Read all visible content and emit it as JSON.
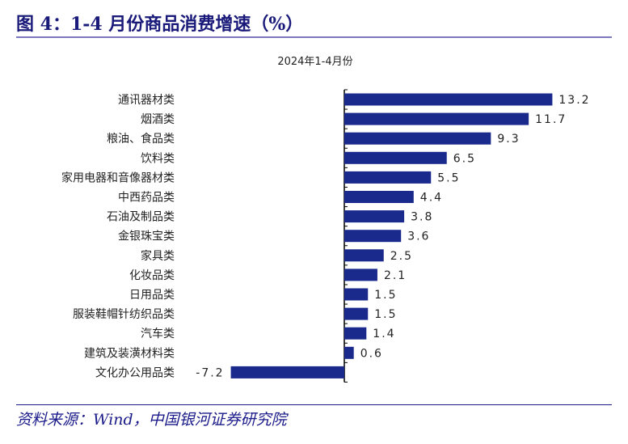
{
  "figure_title": "图 4：1-4 月份商品消费增速（%）",
  "source": "资料来源：Wind，中国银河证券研究院",
  "chart_data": {
    "type": "bar",
    "orientation": "horizontal",
    "title": "2024年1-4月份",
    "categories": [
      "通讯器材类",
      "烟酒类",
      "粮油、食品类",
      "饮料类",
      "家用电器和音像器材类",
      "中西药品类",
      "石油及制品类",
      "金银珠宝类",
      "家具类",
      "化妆品类",
      "日用品类",
      "服装鞋帽针纺织品类",
      "汽车类",
      "建筑及装潢材料类",
      "文化办公用品类"
    ],
    "values": [
      13.2,
      11.7,
      9.3,
      6.5,
      5.5,
      4.4,
      3.8,
      3.6,
      2.5,
      2.1,
      1.5,
      1.5,
      1.4,
      0.6,
      -7.2
    ],
    "data_labels": [
      "13.2",
      "11.7",
      "9.3",
      "6.5",
      "5.5",
      "4.4",
      "3.8",
      "3.6",
      "2.5",
      "2.1",
      "1.5",
      "1.5",
      "1.4",
      "0.6",
      "-7.2"
    ],
    "bar_color": "#1a2a8c",
    "grid": false,
    "legend": "none"
  }
}
